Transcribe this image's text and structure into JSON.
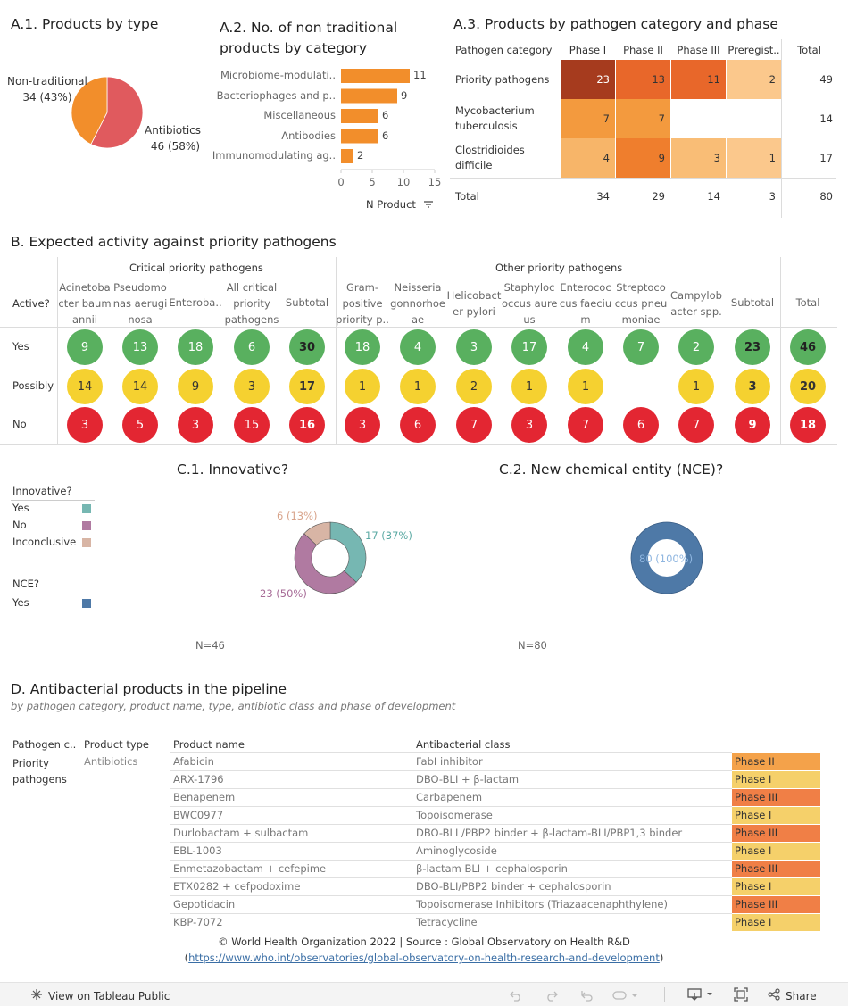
{
  "sectionA1": {
    "title": "A.1. Products by type"
  },
  "sectionA2": {
    "title_line1": "A.2. No. of non traditional",
    "title_line2": "products by category",
    "sort_label": "N Product"
  },
  "sectionA3": {
    "title": "A.3. Products by pathogen category and phase"
  },
  "sectionB": {
    "title": "B. Expected activity against priority pathogens",
    "critical_label": "Critical priority pathogens",
    "other_label": "Other priority pathogens",
    "active_label": "Active?"
  },
  "sectionC1": {
    "title": "C.1. Innovative?",
    "n_label": "N=46"
  },
  "sectionC2": {
    "title": "C.2. New chemical entity (NCE)?",
    "n_label": "N=80"
  },
  "legend": {
    "innovative_title": "Innovative?",
    "innovative_items": [
      "Yes",
      "No",
      "Inconclusive"
    ],
    "nce_title": "NCE?",
    "nce_items": [
      "Yes"
    ]
  },
  "sectionD": {
    "title": "D. Antibacterial products in the pipeline",
    "subtitle": "by pathogen category, product name, type, antibiotic class and phase of development",
    "col_headers": [
      "Pathogen c..",
      "Product type",
      "Product name",
      "Antibacterial class"
    ],
    "pathogen_line1": "Priority",
    "pathogen_line2": "pathogens",
    "product_type": "Antibiotics",
    "rows": [
      {
        "name": "Afabicin",
        "cls": "FabI inhibitor",
        "phase": "Phase II"
      },
      {
        "name": "ARX-1796",
        "cls": "DBO-BLI + β-lactam",
        "phase": "Phase I"
      },
      {
        "name": "Benapenem",
        "cls": "Carbapenem",
        "phase": "Phase III"
      },
      {
        "name": "BWC0977",
        "cls": "Topoisomerase",
        "phase": "Phase I"
      },
      {
        "name": "Durlobactam + sulbactam",
        "cls": "DBO-BLI /PBP2 binder + β-lactam-BLI/PBP1,3 binder",
        "phase": "Phase III"
      },
      {
        "name": "EBL-1003",
        "cls": "Aminoglycoside",
        "phase": "Phase I"
      },
      {
        "name": "Enmetazobactam + cefepime",
        "cls": "β-lactam BLI + cephalosporin",
        "phase": "Phase III"
      },
      {
        "name": "ETX0282 + cefpodoxime",
        "cls": "DBO-BLI/PBP2 binder + cephalosporin",
        "phase": "Phase I"
      },
      {
        "name": "Gepotidacin",
        "cls": "Topoisomerase Inhibitors (Triazaacenaphthylene)",
        "phase": "Phase III"
      },
      {
        "name": "KBP-7072",
        "cls": "Tetracycline",
        "phase": "Phase I"
      }
    ]
  },
  "footer": {
    "copyright": "© World Health Organization 2022 | Source : Global Observatory on Health R&D",
    "link_open": "(",
    "link": "https://www.who.int/observatories/global-observatory-on-health-research-and-development",
    "link_close": ")",
    "view_label": "View on Tableau Public",
    "share_label": "Share"
  },
  "colors": {
    "antibiotics": "#e05a5e",
    "non_traditional": "#f28e2b",
    "bar": "#f28e2b",
    "yes": "#59b05f",
    "possibly": "#f5d130",
    "no": "#e32632",
    "innov_yes": "#76b7b2",
    "innov_no": "#b07aa1",
    "innov_inconclusive": "#d8b5a5",
    "nce_yes": "#4e79a7"
  },
  "chart_data": [
    {
      "id": "A1",
      "type": "pie",
      "title": "A.1. Products by type",
      "slices": [
        {
          "label": "Antibiotics",
          "value": 46,
          "pct_label": "46 (58%)"
        },
        {
          "label": "Non-traditional",
          "value": 34,
          "pct_label": "34 (43%)"
        }
      ]
    },
    {
      "id": "A2",
      "type": "bar",
      "orientation": "horizontal",
      "title": "A.2. No. of non traditional products by category",
      "categories": [
        "Microbiome-modulati..",
        "Bacteriophages and p..",
        "Miscellaneous",
        "Antibodies",
        "Immunomodulating ag.."
      ],
      "values": [
        11,
        9,
        6,
        6,
        2
      ],
      "xticks": [
        0,
        5,
        10,
        15
      ],
      "xlim": [
        0,
        15
      ],
      "xlabel": "N Product"
    },
    {
      "id": "A3",
      "type": "heatmap",
      "title": "A.3. Products by pathogen category and phase",
      "row_header": "Pathogen category",
      "columns": [
        "Phase I",
        "Phase II",
        "Phase III",
        "Preregist..",
        "Total"
      ],
      "rows": [
        {
          "label": "Priority pathogens",
          "values": [
            23,
            13,
            11,
            2
          ],
          "total": 49
        },
        {
          "label": "Mycobacterium tuberculosis",
          "values": [
            7,
            7,
            null,
            null
          ],
          "total": 14
        },
        {
          "label": "Clostridioides difficile",
          "values": [
            4,
            9,
            3,
            1
          ],
          "total": 17
        },
        {
          "label": "Total",
          "values": [
            34,
            29,
            14,
            3
          ],
          "total": 80
        }
      ]
    },
    {
      "id": "B",
      "type": "table",
      "title": "B. Expected activity against priority pathogens",
      "row_labels": [
        "Yes",
        "Possibly",
        "No"
      ],
      "columns": [
        {
          "label": "Acinetobacter baumannii",
          "lines": [
            "Acinetoba",
            "cter baum",
            "annii"
          ],
          "values": [
            9,
            14,
            3
          ]
        },
        {
          "label": "Pseudomonas aeruginosa",
          "lines": [
            "Pseudomo",
            "nas aerugi",
            "nosa"
          ],
          "values": [
            13,
            14,
            5
          ]
        },
        {
          "label": "Enteroba..",
          "lines": [
            "Enteroba.."
          ],
          "values": [
            18,
            9,
            3
          ]
        },
        {
          "label": "All critical priority pathogens",
          "lines": [
            "All critical",
            "priority",
            "pathogens"
          ],
          "values": [
            6,
            3,
            15
          ]
        },
        {
          "label": "Subtotal",
          "lines": [
            "Subtotal"
          ],
          "values": [
            30,
            17,
            16
          ],
          "bold": true
        },
        {
          "label": "Gram-positive priority p..",
          "lines": [
            "Gram-",
            "positive",
            "priority p.."
          ],
          "values": [
            18,
            1,
            3
          ]
        },
        {
          "label": "Neisseria gonnorhoeae",
          "lines": [
            "Neisseria",
            "gonnorhoe",
            "ae"
          ],
          "values": [
            4,
            1,
            6
          ]
        },
        {
          "label": "Helicobacter pylori",
          "lines": [
            "Helicobact",
            "er pylori"
          ],
          "values": [
            3,
            2,
            7
          ]
        },
        {
          "label": "Staphylococcus aureus",
          "lines": [
            "Staphyloc",
            "occus aure",
            "us"
          ],
          "values": [
            17,
            1,
            3
          ]
        },
        {
          "label": "Enterococcus faecium",
          "lines": [
            "Enterococ",
            "cus faeciu",
            "m"
          ],
          "values": [
            4,
            1,
            7
          ]
        },
        {
          "label": "Streptococcus pneumoniae",
          "lines": [
            "Streptoco",
            "ccus pneu",
            "moniae"
          ],
          "values": [
            7,
            null,
            6
          ]
        },
        {
          "label": "Campylobacter spp.",
          "lines": [
            "Campylob",
            "acter spp."
          ],
          "values": [
            2,
            1,
            7
          ]
        },
        {
          "label": "Subtotal",
          "lines": [
            "Subtotal"
          ],
          "values": [
            23,
            3,
            9
          ],
          "bold": true
        },
        {
          "label": "Total",
          "lines": [
            "Total"
          ],
          "values": [
            46,
            20,
            18
          ],
          "bold": true
        }
      ]
    },
    {
      "id": "C1",
      "type": "pie",
      "title": "C.1. Innovative?",
      "slices": [
        {
          "label": "Yes",
          "value": 17,
          "pct_label": "17 (37%)"
        },
        {
          "label": "No",
          "value": 23,
          "pct_label": "23 (50%)"
        },
        {
          "label": "Inconclusive",
          "value": 6,
          "pct_label": "6 (13%)"
        }
      ]
    },
    {
      "id": "C2",
      "type": "pie",
      "title": "C.2. New chemical entity (NCE)?",
      "slices": [
        {
          "label": "Yes",
          "value": 80,
          "pct_label": "80 (100%)"
        }
      ]
    }
  ]
}
